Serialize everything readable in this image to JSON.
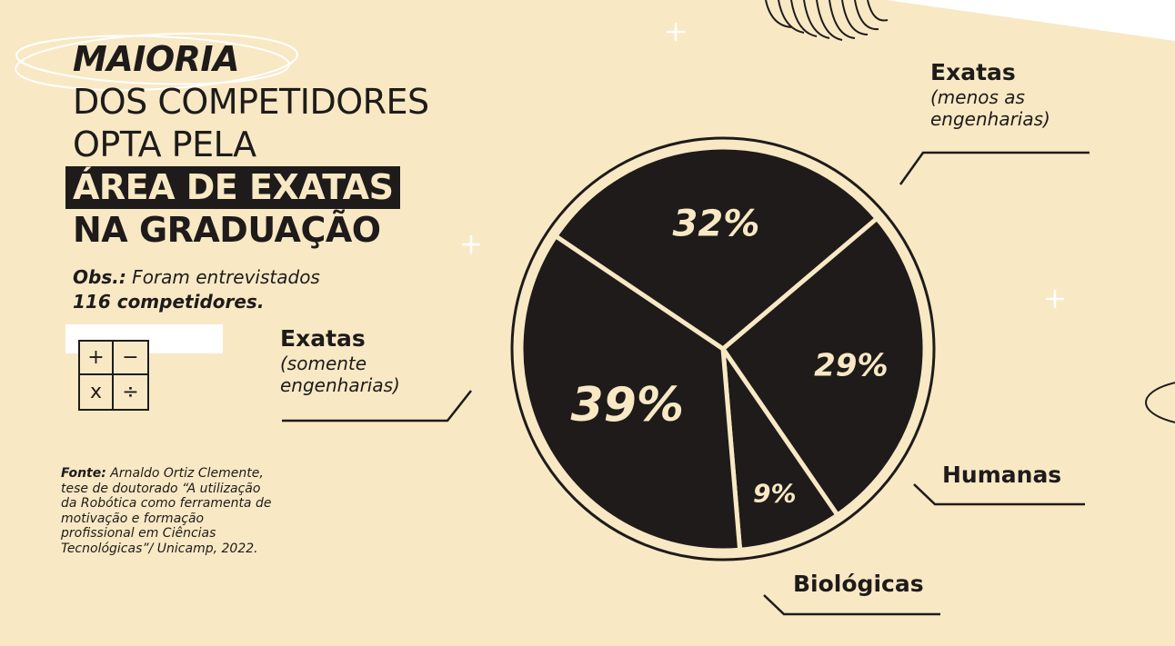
{
  "title": {
    "line1": "MAIORIA",
    "line2": "DOS COMPETIDORES",
    "line3": "OPTA PELA",
    "line4": "ÁREA DE EXATAS",
    "line5": "NA GRADUAÇÃO"
  },
  "obs": {
    "label": "Obs.:",
    "text": " Foram entrevistados",
    "count": "116 competidores."
  },
  "calculator": {
    "plus": "+",
    "minus": "−",
    "times": "x",
    "divide": "÷"
  },
  "source": {
    "label": "Fonte:",
    "text": " Arnaldo Ortiz Clemente, tese de doutorado “A utilização da Robótica como ferramenta de motivação e formação profissional em Ciências Tecnológicas”/ Unicamp, 2022."
  },
  "colors": {
    "background": "#f8e8c4",
    "ink": "#1e1b1a",
    "slice": "#1e1b1a",
    "separator": "#f8e8c4"
  },
  "chart_data": {
    "type": "pie",
    "slices": [
      {
        "name": "Exatas",
        "sub": "(menos as engenharias)",
        "value": 32,
        "label": "32%"
      },
      {
        "name": "Humanas",
        "sub": "",
        "value": 29,
        "label": "29%"
      },
      {
        "name": "Biológicas",
        "sub": "",
        "value": 9,
        "label": "9%"
      },
      {
        "name": "Exatas",
        "sub": "(somente engenharias)",
        "value": 39,
        "label": "39%"
      }
    ]
  }
}
